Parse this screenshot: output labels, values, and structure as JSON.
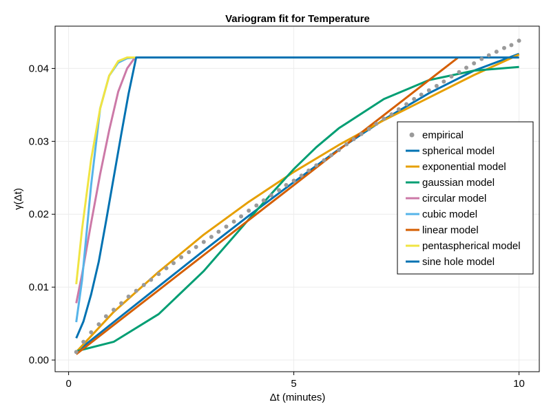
{
  "chart_data": {
    "type": "line",
    "title": "Variogram fit for Temperature",
    "xlabel": "Δt (minutes)",
    "ylabel": "γ(Δt)",
    "xlim": [
      -0.3,
      10.45
    ],
    "ylim": [
      -0.0016,
      0.0458
    ],
    "xticks": [
      0,
      5,
      10
    ],
    "xtick_labels": [
      "0",
      "5",
      "10"
    ],
    "yticks": [
      0.0,
      0.01,
      0.02,
      0.03,
      0.04
    ],
    "ytick_labels": [
      "0.00",
      "0.01",
      "0.02",
      "0.03",
      "0.04"
    ],
    "grid": true,
    "legend_position": "right",
    "empirical": {
      "name": "empirical",
      "color": "#9a9a9a",
      "x": [
        0.17,
        0.33,
        0.5,
        0.67,
        0.83,
        1.0,
        1.17,
        1.33,
        1.5,
        1.67,
        1.83,
        2.0,
        2.17,
        2.33,
        2.5,
        2.67,
        2.83,
        3.0,
        3.17,
        3.33,
        3.5,
        3.67,
        3.83,
        4.0,
        4.17,
        4.33,
        4.5,
        4.67,
        4.83,
        5.0,
        5.17,
        5.33,
        5.5,
        5.67,
        5.83,
        6.0,
        6.17,
        6.33,
        6.5,
        6.67,
        6.83,
        7.0,
        7.17,
        7.33,
        7.5,
        7.67,
        7.83,
        8.0,
        8.17,
        8.33,
        8.5,
        8.67,
        8.83,
        9.0,
        9.17,
        9.33,
        9.5,
        9.67,
        9.83,
        10.0
      ],
      "y": [
        0.0011,
        0.0025,
        0.0038,
        0.0049,
        0.006,
        0.0069,
        0.0078,
        0.0087,
        0.0095,
        0.0103,
        0.011,
        0.0118,
        0.0126,
        0.0133,
        0.0141,
        0.0148,
        0.0155,
        0.0162,
        0.0169,
        0.0176,
        0.0183,
        0.019,
        0.0197,
        0.0205,
        0.0212,
        0.0219,
        0.0226,
        0.0233,
        0.024,
        0.0246,
        0.0253,
        0.026,
        0.0267,
        0.0274,
        0.0281,
        0.0288,
        0.0296,
        0.0303,
        0.031,
        0.0317,
        0.0324,
        0.0331,
        0.0337,
        0.0344,
        0.0351,
        0.0358,
        0.0364,
        0.037,
        0.0376,
        0.0382,
        0.0389,
        0.0395,
        0.0401,
        0.0407,
        0.0413,
        0.0418,
        0.0423,
        0.0428,
        0.0432,
        0.0438
      ]
    },
    "series": [
      {
        "name": "spherical model",
        "color": "#0072b2",
        "x": [
          0.17,
          1.0,
          2.0,
          3.0,
          4.0,
          5.0,
          6.0,
          7.0,
          8.0,
          9.0,
          10.0
        ],
        "y": [
          0.0011,
          0.0052,
          0.0101,
          0.015,
          0.0198,
          0.0244,
          0.0289,
          0.033,
          0.0366,
          0.0397,
          0.042
        ]
      },
      {
        "name": "exponential model",
        "color": "#e69f00",
        "x": [
          0.17,
          1.0,
          2.0,
          3.0,
          4.0,
          5.0,
          6.0,
          7.0,
          8.0,
          9.0,
          10.0
        ],
        "y": [
          0.0011,
          0.0066,
          0.0121,
          0.0172,
          0.0217,
          0.0258,
          0.0295,
          0.0329,
          0.036,
          0.0391,
          0.0419
        ]
      },
      {
        "name": "gaussian model",
        "color": "#009e73",
        "x": [
          0.17,
          1.0,
          2.0,
          3.0,
          4.0,
          4.5,
          5.0,
          5.5,
          6.0,
          7.0,
          8.0,
          9.0,
          10.0
        ],
        "y": [
          0.0012,
          0.0025,
          0.0063,
          0.0122,
          0.0193,
          0.0228,
          0.0262,
          0.0292,
          0.0318,
          0.0358,
          0.0384,
          0.0397,
          0.0402
        ]
      },
      {
        "name": "circular model",
        "color": "#cc79a7",
        "x": [
          0.17,
          0.3,
          0.5,
          0.7,
          0.9,
          1.1,
          1.3,
          1.45,
          1.5,
          10.0
        ],
        "y": [
          0.0078,
          0.0118,
          0.0188,
          0.0255,
          0.0315,
          0.0368,
          0.04,
          0.0413,
          0.0415,
          0.0415
        ]
      },
      {
        "name": "cubic model",
        "color": "#56b4e9",
        "x": [
          0.17,
          0.3,
          0.5,
          0.7,
          0.9,
          1.1,
          1.3,
          1.5,
          10.0
        ],
        "y": [
          0.0052,
          0.011,
          0.024,
          0.0345,
          0.039,
          0.0408,
          0.0414,
          0.0415,
          0.0415
        ]
      },
      {
        "name": "linear model",
        "color": "#d55e00",
        "x": [
          0.17,
          1.0,
          2.0,
          3.0,
          4.0,
          5.0,
          6.0,
          7.0,
          8.0,
          8.65,
          10.0
        ],
        "y": [
          0.0008,
          0.0048,
          0.0096,
          0.0144,
          0.0192,
          0.024,
          0.0288,
          0.0336,
          0.0384,
          0.0415,
          0.0415
        ]
      },
      {
        "name": "pentaspherical model",
        "color": "#f0e442",
        "x": [
          0.17,
          0.3,
          0.5,
          0.7,
          0.9,
          1.1,
          1.3,
          1.5,
          10.0
        ],
        "y": [
          0.0104,
          0.018,
          0.0275,
          0.0345,
          0.039,
          0.041,
          0.0415,
          0.0415,
          0.0415
        ]
      },
      {
        "name": "sine hole model",
        "color": "#0072b2",
        "x": [
          0.17,
          0.33,
          0.5,
          0.67,
          0.83,
          1.0,
          1.17,
          1.33,
          1.5,
          10.0
        ],
        "y": [
          0.003,
          0.0053,
          0.009,
          0.0135,
          0.019,
          0.025,
          0.031,
          0.0365,
          0.0415,
          0.0415
        ]
      }
    ]
  }
}
